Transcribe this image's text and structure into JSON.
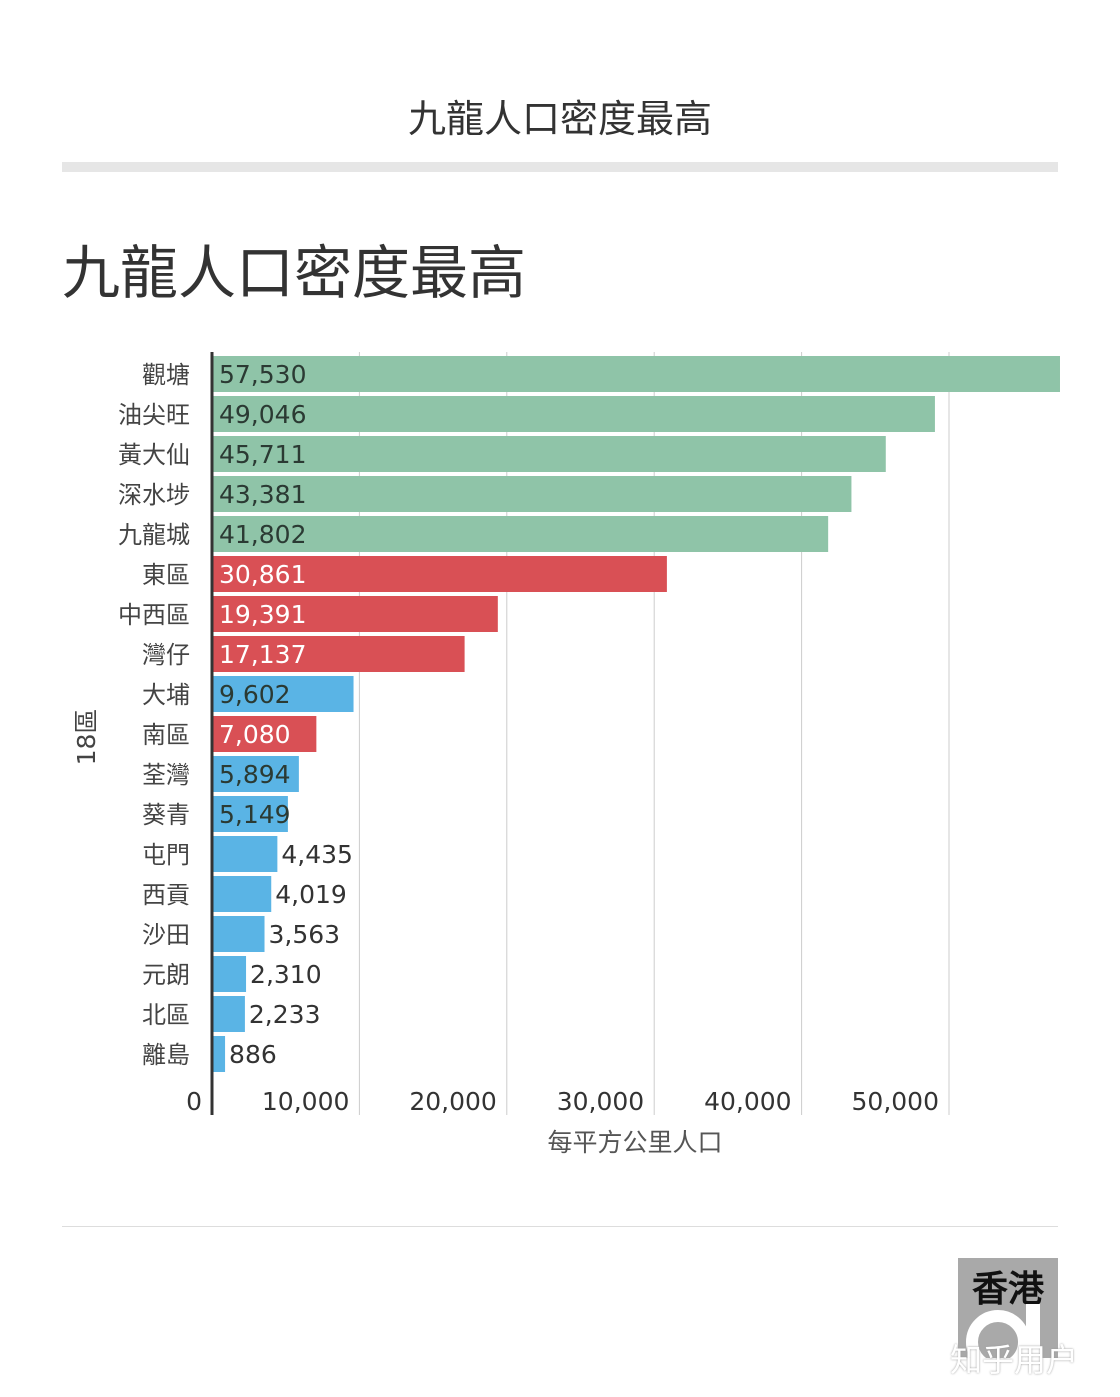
{
  "header": {
    "title": "九龍人口密度最高"
  },
  "chart_data": {
    "type": "bar",
    "orientation": "horizontal",
    "title": "九龍人口密度最高",
    "xlabel": "每平方公里人口",
    "ylabel": "18區",
    "xlim": [
      0,
      57530
    ],
    "xticks": [
      0,
      10000,
      20000,
      30000,
      40000,
      50000
    ],
    "xtick_labels": [
      "0",
      "10,000",
      "20,000",
      "30,000",
      "40,000",
      "50,000"
    ],
    "grid": true,
    "colors": {
      "kowloon": "#8fc4a8",
      "hk_island": "#d95055",
      "nt": "#5ab4e5"
    },
    "categories": [
      "觀塘",
      "油尖旺",
      "黃大仙",
      "深水埗",
      "九龍城",
      "東區",
      "中西區",
      "灣仔",
      "大埔",
      "南區",
      "荃灣",
      "葵青",
      "屯門",
      "西貢",
      "沙田",
      "元朗",
      "北區",
      "離島"
    ],
    "values": [
      57530,
      49046,
      45711,
      43381,
      41802,
      30861,
      19391,
      17137,
      9602,
      7080,
      5894,
      5149,
      4435,
      4019,
      3563,
      2310,
      2233,
      886
    ],
    "value_labels": [
      "57,530",
      "49,046",
      "45,711",
      "43,381",
      "41,802",
      "30,861",
      "19,391",
      "17,137",
      "9,602",
      "7,080",
      "5,894",
      "5,149",
      "4,435",
      "4,019",
      "3,563",
      "2,310",
      "2,233",
      "886"
    ],
    "groups": [
      "kowloon",
      "kowloon",
      "kowloon",
      "kowloon",
      "kowloon",
      "hk_island",
      "hk_island",
      "hk_island",
      "nt",
      "hk_island",
      "nt",
      "nt",
      "nt",
      "nt",
      "nt",
      "nt",
      "nt",
      "nt"
    ]
  },
  "logo": {
    "text": "香港01"
  },
  "watermark": "知乎用户"
}
